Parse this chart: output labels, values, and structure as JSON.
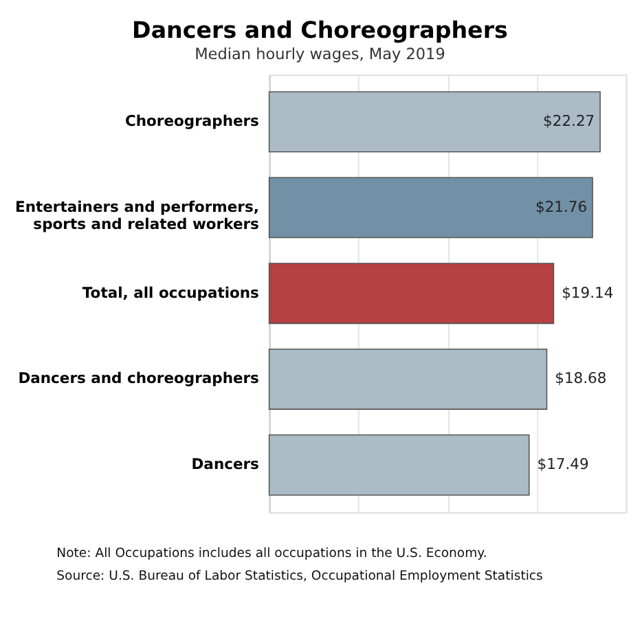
{
  "chart_data": {
    "type": "bar",
    "orientation": "horizontal",
    "title": "Dancers and Choreographers",
    "subtitle": "Median hourly wages, May 2019",
    "categories": [
      "Choreographers",
      "Entertainers and performers,\nsports and related workers",
      "Total, all occupations",
      "Dancers and choreographers",
      "Dancers"
    ],
    "values": [
      22.27,
      21.76,
      19.14,
      18.68,
      17.49
    ],
    "colors": [
      "#abbcc7",
      "#7290a6",
      "#b54142",
      "#abbcc7",
      "#abbcc7"
    ],
    "value_labels": [
      "$22.27",
      "$21.76",
      "$19.14",
      "$18.68",
      "$17.49"
    ],
    "xlim": [
      0,
      24
    ],
    "xticks": [
      {
        "value": 0,
        "label": null
      },
      {
        "value": 6,
        "label": null
      },
      {
        "value": 12,
        "label": null
      },
      {
        "value": 18,
        "label": null
      },
      {
        "value": 24,
        "label": null
      }
    ],
    "tick_labels": "y",
    "grid": "x",
    "annotations": [
      "Note: All Occupations includes all occupations in the U.S. Economy.",
      "Source: U.S. Bureau of Labor Statistics, Occupational Employment Statistics"
    ]
  }
}
